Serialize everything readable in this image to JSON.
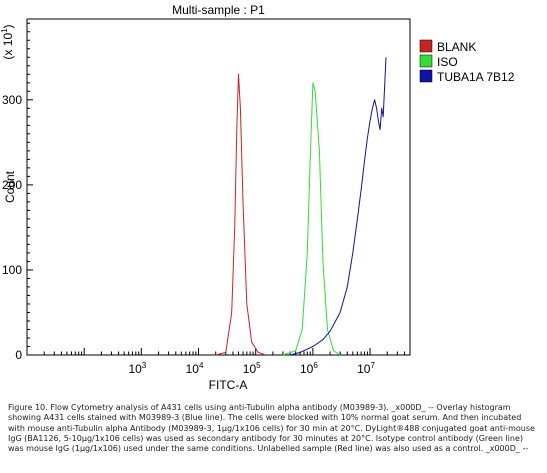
{
  "caption": "Figure 10. Flow Cytometry analysis of A431 cells using anti-Tubulin alpha antibody (M03989-3). _x000D_ -- Overlay histogram showing A431 cells stained with M03989-3 (Blue line). The cells were blocked with 10% normal goat serum. And then incubated with mouse anti-Tubulin alpha Antibody (M03989-3, 1µg/1x106 cells) for 30 min at 20°C. DyLight®488 conjugated goat anti-mouse IgG (BA1126, 5-10µg/1x106 cells) was used as secondary antibody for 30 minutes at 20°C. Isotype control antibody (Green line) was mouse IgG (1µg/1x106) used under the same conditions. Unlabelled sample (Red line) was also used as a control. _x000D_ --",
  "chart_data": {
    "type": "line",
    "title": "Multi-sample : P1",
    "xlabel": "FITC-A",
    "ylabel": "Count",
    "y_multiplier_label": "(x 10",
    "y_multiplier_exp": "1",
    "x_scale": "log",
    "xlim": [
      10,
      50000000
    ],
    "ylim": [
      0,
      395
    ],
    "x_ticks": [
      {
        "value": 1000,
        "base": "10",
        "exp": "3"
      },
      {
        "value": 10000,
        "base": "10",
        "exp": "4"
      },
      {
        "value": 100000,
        "base": "10",
        "exp": "5"
      },
      {
        "value": 1000000,
        "base": "10",
        "exp": "6"
      },
      {
        "value": 10000000,
        "base": "10",
        "exp": "7"
      }
    ],
    "y_ticks": [
      0,
      100,
      200,
      300
    ],
    "legend_position": "right",
    "series": [
      {
        "name": "BLANK",
        "color": "#cc2222",
        "x": [
          20000,
          30000,
          38000,
          43000,
          47000,
          50000,
          54000,
          60000,
          70000,
          85000,
          110000,
          150000
        ],
        "y": [
          0,
          3,
          50,
          150,
          270,
          330,
          290,
          180,
          60,
          15,
          3,
          0
        ]
      },
      {
        "name": "ISO",
        "color": "#33dd33",
        "x": [
          300000,
          500000,
          650000,
          800000,
          900000,
          1000000,
          1100000,
          1300000,
          1500000,
          1800000,
          2300000,
          3000000
        ],
        "y": [
          0,
          5,
          30,
          120,
          230,
          320,
          310,
          240,
          110,
          30,
          5,
          0
        ]
      },
      {
        "name": "TUBA1A 7B12",
        "color": "#1111aa",
        "x": [
          400000,
          600000,
          1000000,
          1500000,
          2000000,
          3000000,
          4000000,
          5000000,
          6000000,
          7000000,
          8000000,
          9000000,
          10000000,
          11000000,
          12000000,
          13000000,
          14000000,
          15000000,
          16000000,
          17000000,
          19000000
        ],
        "y": [
          0,
          3,
          10,
          18,
          28,
          50,
          80,
          120,
          160,
          195,
          228,
          255,
          275,
          290,
          300,
          290,
          275,
          265,
          290,
          280,
          350
        ]
      }
    ]
  }
}
